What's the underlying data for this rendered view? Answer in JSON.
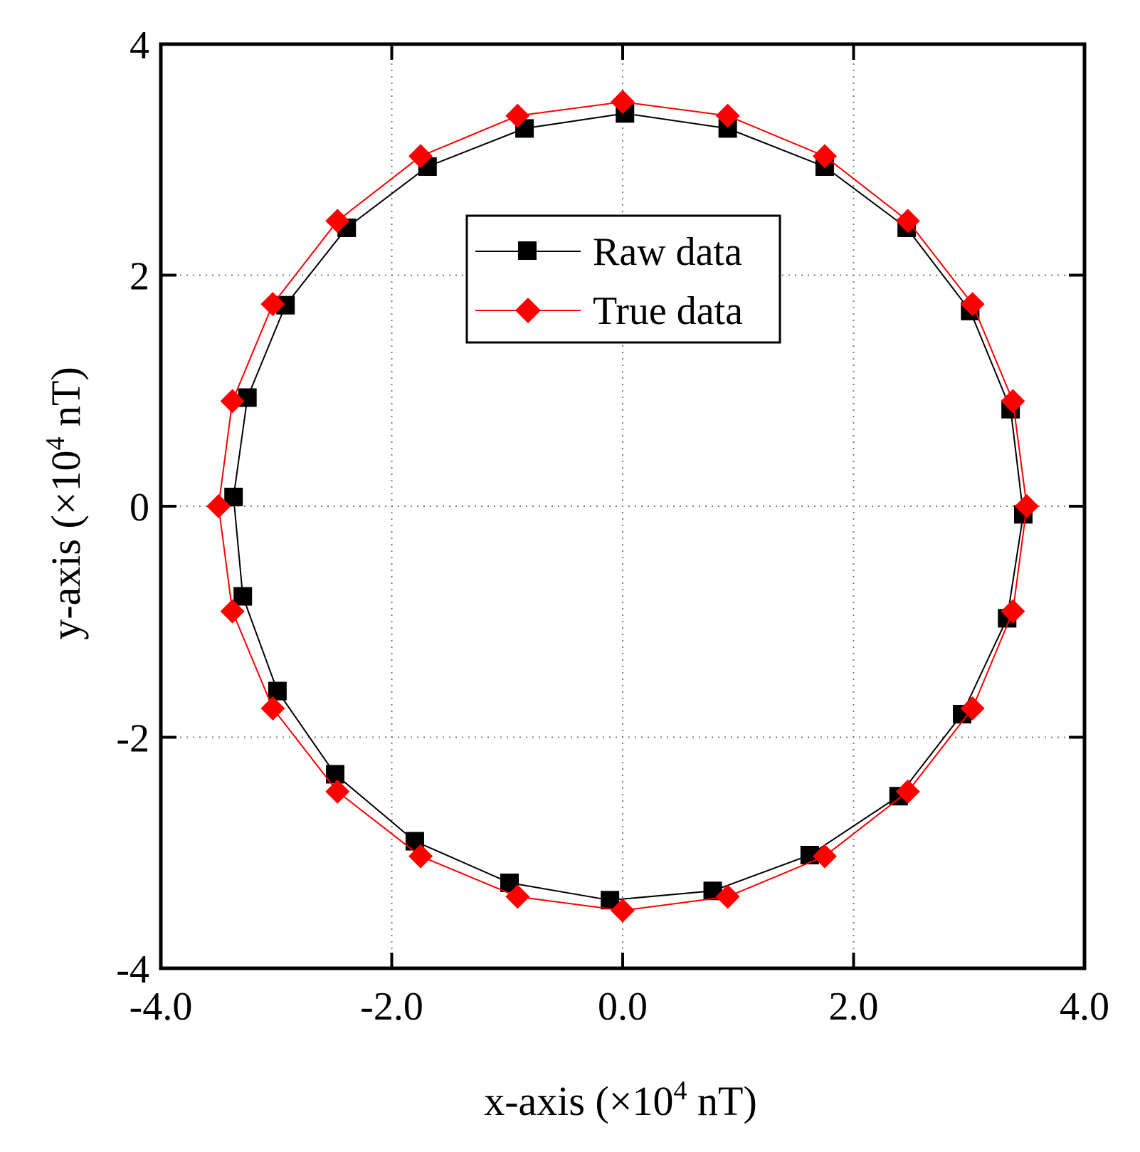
{
  "chart_data": {
    "type": "scatter",
    "title": "",
    "xlabel": {
      "prefix": "x-axis (×10",
      "exp": "4",
      "suffix": " nT)"
    },
    "ylabel": {
      "prefix": "y-axis (×10",
      "exp": "4",
      "suffix": " nT)"
    },
    "xlim": [
      -4,
      4
    ],
    "ylim": [
      -4,
      4
    ],
    "xticks": [
      -4,
      -2,
      0,
      2,
      4
    ],
    "xtick_labels": [
      "-4.0",
      "-2.0",
      "0.0",
      "2.0",
      "4.0"
    ],
    "yticks": [
      -4,
      -2,
      0,
      2,
      4
    ],
    "ytick_labels": [
      "-4",
      "-2",
      "0",
      "2",
      "4"
    ],
    "grid": true,
    "legend_position": "upper-center",
    "series": [
      {
        "name": "Raw data",
        "color": "#000000",
        "marker": "square",
        "points": [
          [
            3.47,
            -0.07
          ],
          [
            3.33,
            -0.97
          ],
          [
            2.94,
            -1.8
          ],
          [
            2.39,
            -2.51
          ],
          [
            1.62,
            -3.02
          ],
          [
            0.78,
            -3.33
          ],
          [
            -0.11,
            -3.41
          ],
          [
            -0.98,
            -3.26
          ],
          [
            -1.8,
            -2.9
          ],
          [
            -2.49,
            -2.32
          ],
          [
            -2.99,
            -1.6
          ],
          [
            -3.29,
            -0.78
          ],
          [
            -3.37,
            0.08
          ],
          [
            -3.25,
            0.94
          ],
          [
            -2.92,
            1.74
          ],
          [
            -2.39,
            2.41
          ],
          [
            -1.69,
            2.94
          ],
          [
            -0.85,
            3.27
          ],
          [
            0.02,
            3.4
          ],
          [
            0.91,
            3.27
          ],
          [
            1.75,
            2.94
          ],
          [
            2.46,
            2.41
          ],
          [
            3.01,
            1.69
          ],
          [
            3.36,
            0.84
          ]
        ]
      },
      {
        "name": "True data",
        "color": "#ff0000",
        "marker": "diamond",
        "points": [
          [
            3.5,
            0.0
          ],
          [
            3.38,
            -0.91
          ],
          [
            3.03,
            -1.75
          ],
          [
            2.47,
            -2.47
          ],
          [
            1.75,
            -3.03
          ],
          [
            0.91,
            -3.38
          ],
          [
            0.0,
            -3.5
          ],
          [
            -0.91,
            -3.38
          ],
          [
            -1.75,
            -3.03
          ],
          [
            -2.47,
            -2.47
          ],
          [
            -3.03,
            -1.75
          ],
          [
            -3.38,
            -0.91
          ],
          [
            -3.5,
            0.0
          ],
          [
            -3.38,
            0.91
          ],
          [
            -3.03,
            1.75
          ],
          [
            -2.47,
            2.47
          ],
          [
            -1.75,
            3.03
          ],
          [
            -0.91,
            3.38
          ],
          [
            0.0,
            3.5
          ],
          [
            0.91,
            3.38
          ],
          [
            1.75,
            3.03
          ],
          [
            2.47,
            2.47
          ],
          [
            3.03,
            1.75
          ],
          [
            3.38,
            0.91
          ]
        ]
      }
    ]
  }
}
